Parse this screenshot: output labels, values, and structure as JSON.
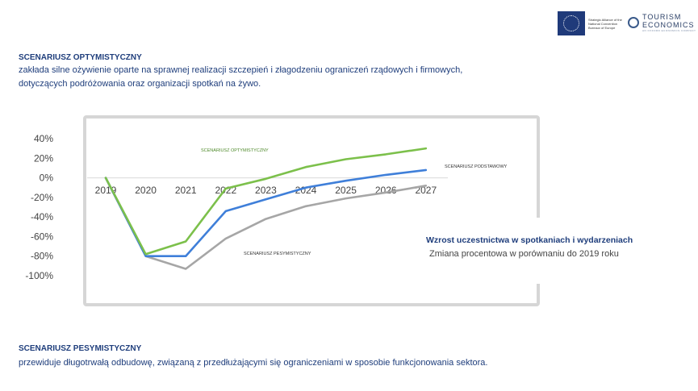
{
  "logos": {
    "eu_text": "Strategic Alliance of the National Convention Bureaux of Europe",
    "te_line1": "TOURISM",
    "te_line2": "ECONOMICS",
    "te_sub": "AN OXFORD ECONOMICS COMPANY"
  },
  "optimistic": {
    "heading": "SCENARIUSZ OPTYMISTYCZNY",
    "line1": "zakłada silne ożywienie oparte na sprawnej realizacji szczepień i złagodzeniu ograniczeń rządowych i firmowych,",
    "line2": "dotyczących podróżowania oraz organizacji spotkań na żywo."
  },
  "pessimistic": {
    "heading": "SCENARIUSZ PESYMISTYCZNY",
    "text": "przewiduje długotrwałą odbudowę, związaną z przedłużającymi się ograniczeniami w sposobie funkcjonowania sektora."
  },
  "chart_caption": {
    "title": "Wzrost uczestnictwa w spotkaniach i wydarzeniach",
    "subtitle": "Zmiana procentowa w porównaniu do 2019 roku"
  },
  "chart_data": {
    "type": "line",
    "x": [
      "2019",
      "2020",
      "2021",
      "2022",
      "2023",
      "2024",
      "2025",
      "2026",
      "2027"
    ],
    "y_ticks": [
      "40%",
      "20%",
      "0%",
      "-20%",
      "-40%",
      "-60%",
      "-80%",
      "-100%"
    ],
    "ylim": [
      -100,
      40
    ],
    "grid": false,
    "series": [
      {
        "name": "SCENARIUSZ OPTYMISTYCZNY",
        "color": "#7cc04b",
        "values": [
          0,
          -78,
          -65,
          -11,
          -1,
          11,
          19,
          24,
          30
        ]
      },
      {
        "name": "SCENARIUSZ PODSTAWOWY",
        "color": "#3f7fd9",
        "values": [
          0,
          -80,
          -80,
          -34,
          -22,
          -10,
          -3,
          3,
          8
        ]
      },
      {
        "name": "SCENARIUSZ PESYMISTYCZNY",
        "color": "#a6a6a6",
        "values": [
          0,
          -80,
          -93,
          -62,
          -42,
          -29,
          -21,
          -15,
          -8
        ]
      }
    ]
  }
}
